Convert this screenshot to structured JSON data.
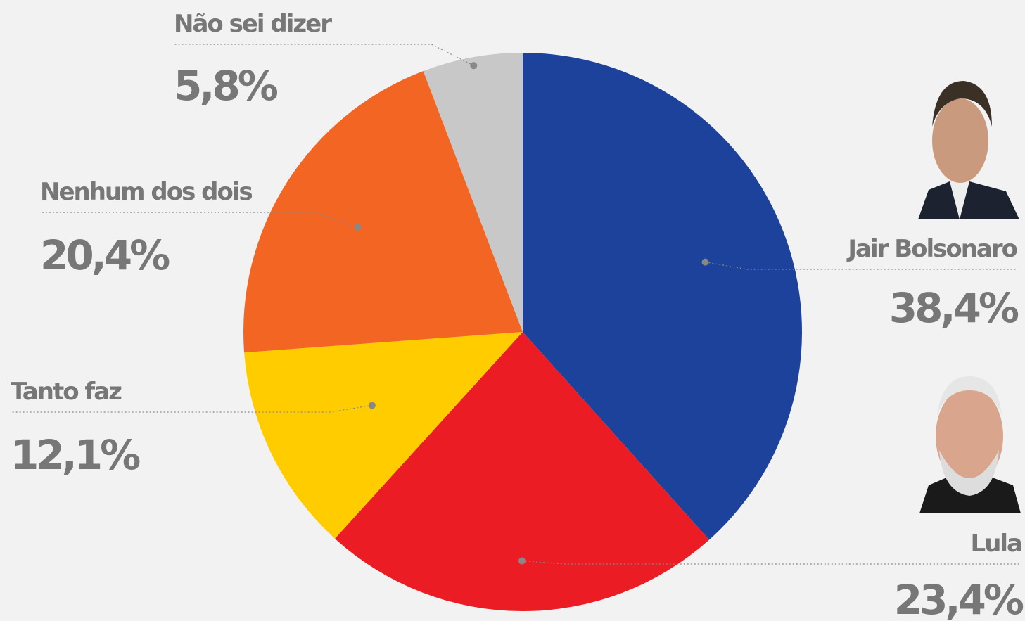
{
  "chart_data": {
    "type": "pie",
    "categories": [
      "Jair Bolsonaro",
      "Lula",
      "Tanto faz",
      "Nenhum dos dois",
      "Não sei dizer"
    ],
    "values": [
      38.4,
      23.4,
      12.1,
      20.4,
      5.8
    ],
    "value_labels": [
      "38,4%",
      "23,4%",
      "12,1%",
      "20,4%",
      "5,8%"
    ],
    "colors": [
      "#1c429b",
      "#ec1c24",
      "#ffcc00",
      "#f26522",
      "#c8c8c8"
    ]
  }
}
